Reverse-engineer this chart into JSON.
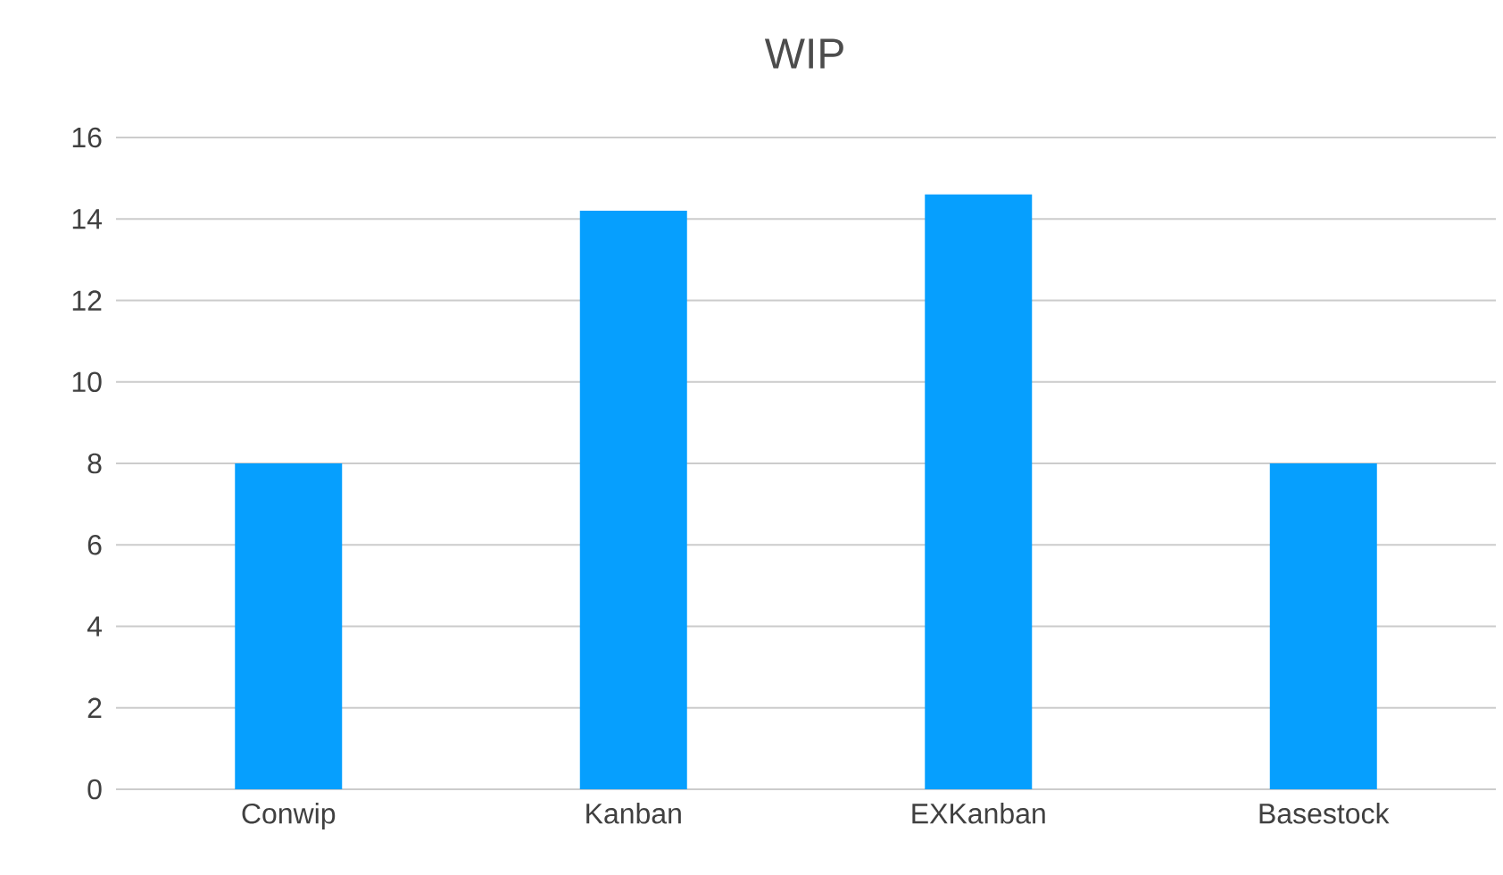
{
  "chart_data": {
    "type": "bar",
    "title": "WIP",
    "categories": [
      "Conwip",
      "Kanban",
      "EXKanban",
      "Basestock"
    ],
    "values": [
      8,
      14.2,
      14.6,
      8
    ],
    "color": "#069ffe",
    "ylim": [
      0,
      16
    ],
    "yticks": [
      0,
      2,
      4,
      6,
      8,
      10,
      12,
      14,
      16
    ],
    "grid": "y"
  }
}
